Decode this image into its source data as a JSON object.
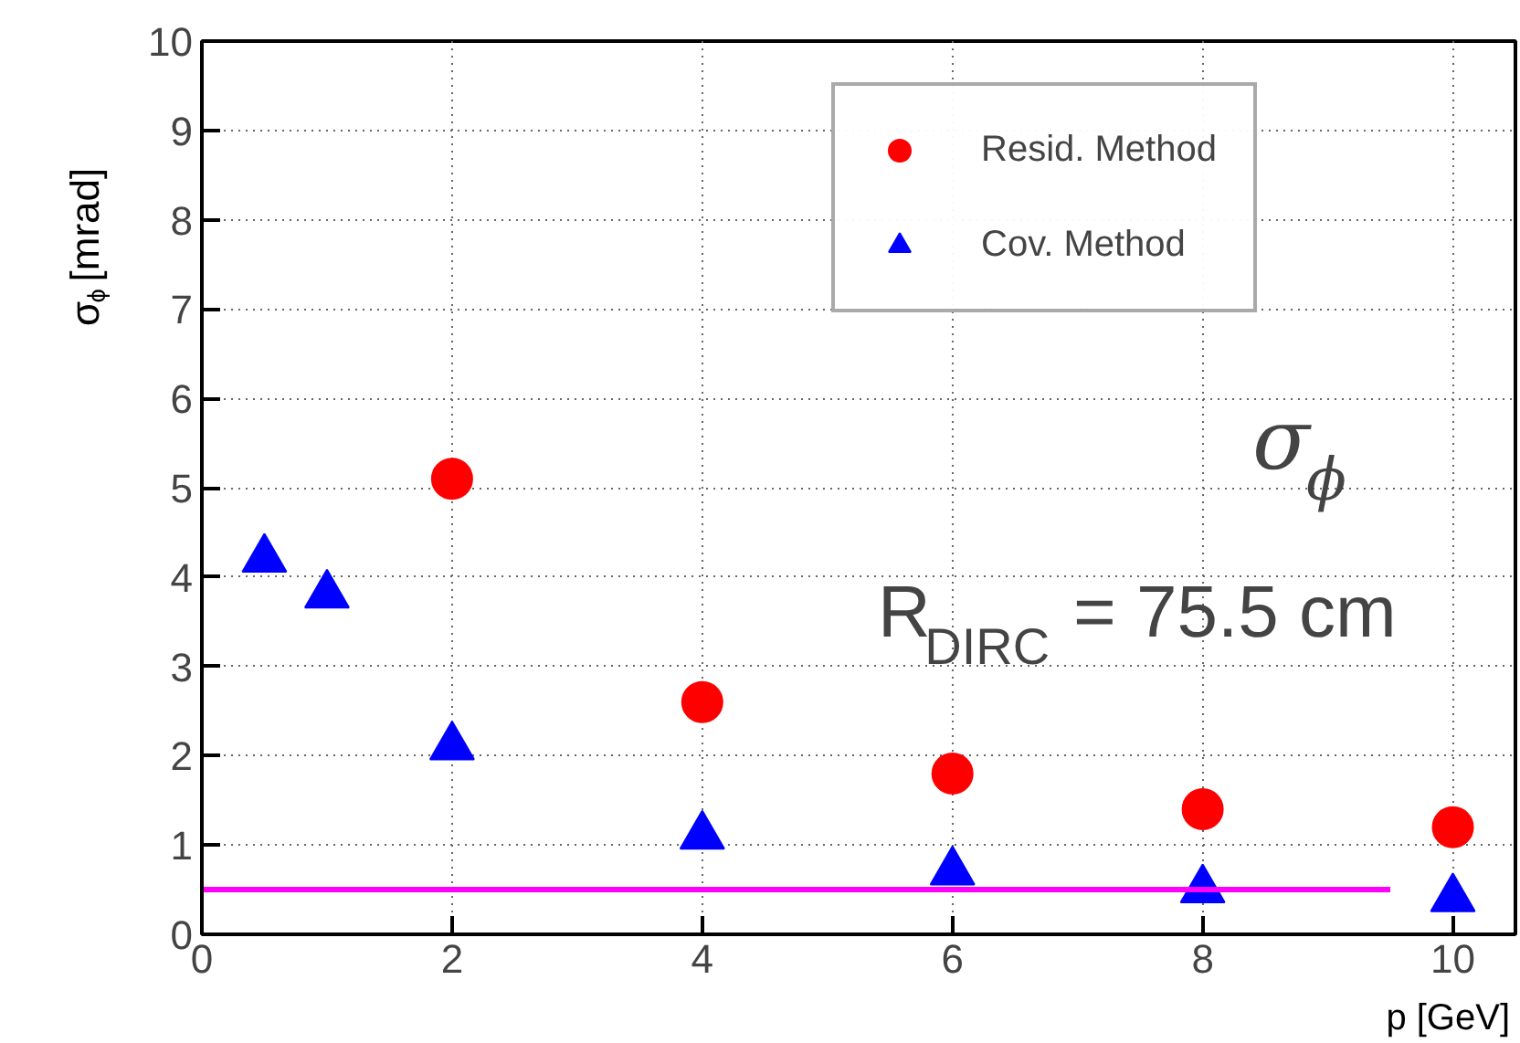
{
  "chart_data": {
    "type": "scatter",
    "xlabel": "p [GeV]",
    "ylabel": "σ$_{ϕ}$ [mrad]",
    "xlim": [
      0,
      10.5
    ],
    "xticks": [
      0,
      2,
      4,
      6,
      8,
      10
    ],
    "ylim": [
      0,
      10
    ],
    "yticks": [
      0,
      1,
      2,
      3,
      4,
      5,
      6,
      7,
      8,
      9,
      10
    ],
    "grid": true,
    "legend": "top right",
    "series": [
      {
        "name": "Resid. Method",
        "color": "#ff0000",
        "marker": "circle",
        "x": [
          2,
          4,
          6,
          8,
          10
        ],
        "values": [
          5.1,
          2.6,
          1.8,
          1.4,
          1.2
        ]
      },
      {
        "name": "Cov. Method",
        "color": "#0000ff",
        "marker": "triangle",
        "x": [
          0.5,
          1,
          2,
          4,
          6,
          8,
          10
        ],
        "values": [
          4.2,
          3.8,
          2.1,
          1.1,
          0.7,
          0.5,
          0.4
        ]
      },
      {
        "type": "line",
        "color": "#ff00ff",
        "x": [
          0,
          9.5
        ],
        "values": [
          0.5,
          0.5
        ]
      }
    ],
    "annotations": [
      "σ$_{ϕ}$",
      "R$_{DIRC}$ = 75.5 cm"
    ]
  }
}
